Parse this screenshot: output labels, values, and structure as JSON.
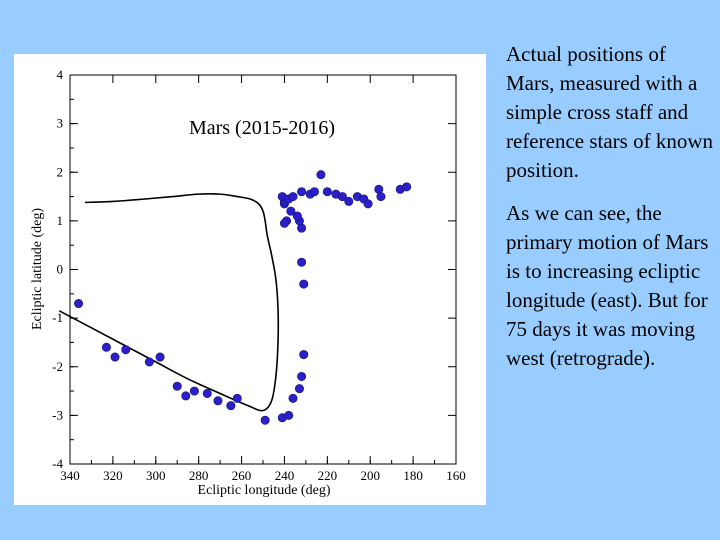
{
  "text": {
    "para1": "Actual positions of Mars, measured with a simple cross staff and reference stars of known position.",
    "para2": "As we can see, the primary motion of Mars is to increasing ecliptic longitude (east). But for 75 days it was moving west (retrograde)."
  },
  "colors": {
    "background": "#99ccff",
    "points": "#2a1fc8",
    "curve": "#000000"
  },
  "chart_data": {
    "type": "scatter",
    "title": "Mars (2015-2016)",
    "xlabel": "Ecliptic longitude (deg)",
    "ylabel": "Ecliptic latitude (deg)",
    "xlim": [
      340,
      160
    ],
    "ylim": [
      -4,
      4
    ],
    "x_ticks": [
      340,
      320,
      300,
      280,
      260,
      240,
      220,
      200,
      180,
      160
    ],
    "y_ticks": [
      4,
      3,
      2,
      1,
      0,
      -1,
      -2,
      -3,
      -4
    ],
    "grid": false,
    "series": [
      {
        "kind": "points",
        "x": [
          336,
          323,
          319,
          314,
          303,
          298,
          290,
          286,
          282,
          276,
          271,
          265,
          262,
          249,
          241,
          238,
          236,
          233,
          232,
          231,
          231,
          232,
          232,
          233,
          234,
          237,
          239,
          240,
          240,
          240,
          241,
          238,
          236,
          232,
          228,
          226,
          223,
          220,
          216,
          213,
          210,
          206,
          203,
          201,
          196,
          195,
          186,
          183
        ],
        "y": [
          -0.7,
          -1.6,
          -1.8,
          -1.65,
          -1.9,
          -1.8,
          -2.4,
          -2.6,
          -2.5,
          -2.55,
          -2.7,
          -2.8,
          -2.65,
          -3.1,
          -3.05,
          -3.0,
          -2.65,
          -2.45,
          -2.2,
          -1.75,
          -0.3,
          0.15,
          0.85,
          1.0,
          1.1,
          1.2,
          1.0,
          0.95,
          1.35,
          1.4,
          1.5,
          1.45,
          1.5,
          1.6,
          1.55,
          1.6,
          1.95,
          1.6,
          1.55,
          1.5,
          1.4,
          1.5,
          1.45,
          1.35,
          1.65,
          1.5,
          1.65,
          1.7
        ]
      },
      {
        "kind": "curve",
        "x": [
          345,
          330,
          315,
          300,
          285,
          270,
          257,
          250,
          246,
          244,
          243,
          243,
          244,
          246,
          248,
          249,
          250,
          252,
          256,
          262,
          270,
          280,
          292,
          305,
          320,
          333
        ],
        "y": [
          -0.85,
          -1.2,
          -1.55,
          -1.9,
          -2.25,
          -2.55,
          -2.8,
          -2.9,
          -2.7,
          -2.2,
          -1.5,
          -0.8,
          -0.2,
          0.3,
          0.7,
          1.0,
          1.2,
          1.35,
          1.45,
          1.5,
          1.55,
          1.55,
          1.5,
          1.45,
          1.4,
          1.38
        ]
      }
    ]
  }
}
